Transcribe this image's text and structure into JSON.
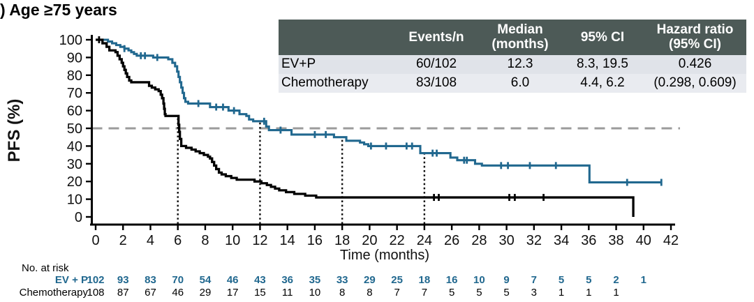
{
  "title": ") Age ≥75 years",
  "summary_table": {
    "headers": [
      "",
      "Events/n",
      "Median\n(months)",
      "95% CI",
      "Hazard ratio\n(95% CI)"
    ],
    "rows": [
      {
        "label": "EV+P",
        "events_n": "60/102",
        "median_months": "12.3",
        "ci_95": "8.3, 19.5",
        "hazard_ratio": "0.426"
      },
      {
        "label": "Chemotherapy",
        "events_n": "83/108",
        "median_months": "6.0",
        "ci_95": "4.4, 6.2",
        "hazard_ratio": "(0.298, 0.609)"
      }
    ],
    "header_bg": "#4d5a57",
    "row_bgs": [
      "#e0e3e9",
      "#e9ebf0"
    ]
  },
  "chart_data": {
    "type": "line",
    "subtype": "kaplan-meier-step",
    "xlabel": "Time (months)",
    "ylabel": "PFS (%)",
    "xlim": [
      0,
      42
    ],
    "ylim": [
      0,
      100
    ],
    "xticks": [
      0,
      2,
      4,
      6,
      8,
      10,
      12,
      14,
      16,
      18,
      20,
      22,
      24,
      26,
      28,
      30,
      32,
      34,
      36,
      38,
      40,
      42
    ],
    "yticks": [
      0,
      10,
      20,
      30,
      40,
      50,
      60,
      70,
      80,
      90,
      100
    ],
    "grid": false,
    "legend": "none (series identified in summary and risk tables)",
    "reference_lines": {
      "horizontal_dashed": {
        "y": 50,
        "color": "#9b9b9b"
      },
      "vertical_dotted": [
        {
          "x": 6,
          "y_top": 57
        },
        {
          "x": 12,
          "y_top": 54
        },
        {
          "x": 18,
          "y_top": 45
        },
        {
          "x": 24,
          "y_top": 36
        }
      ]
    },
    "series": [
      {
        "name": "EV+P",
        "color": "#21688f",
        "median_months": 12.3,
        "steps": [
          [
            0,
            100
          ],
          [
            0.9,
            99
          ],
          [
            1.2,
            98
          ],
          [
            1.5,
            97
          ],
          [
            1.8,
            96
          ],
          [
            2.1,
            95
          ],
          [
            2.4,
            94
          ],
          [
            2.6,
            93
          ],
          [
            2.8,
            92
          ],
          [
            3.0,
            91
          ],
          [
            4.2,
            90
          ],
          [
            5.3,
            89
          ],
          [
            5.6,
            87
          ],
          [
            5.8,
            85
          ],
          [
            5.95,
            82
          ],
          [
            6.05,
            79
          ],
          [
            6.15,
            76
          ],
          [
            6.25,
            73
          ],
          [
            6.35,
            70
          ],
          [
            6.45,
            67
          ],
          [
            6.55,
            65
          ],
          [
            6.75,
            64
          ],
          [
            8.35,
            62
          ],
          [
            9.7,
            60
          ],
          [
            10.5,
            58
          ],
          [
            11.0,
            57
          ],
          [
            11.2,
            55
          ],
          [
            11.5,
            54
          ],
          [
            12.45,
            51
          ],
          [
            12.65,
            49
          ],
          [
            14.3,
            46.5
          ],
          [
            17.4,
            45
          ],
          [
            18.3,
            43
          ],
          [
            19.3,
            42
          ],
          [
            19.6,
            41
          ],
          [
            19.9,
            40
          ],
          [
            23.7,
            36
          ],
          [
            25.9,
            33.5
          ],
          [
            26.4,
            32
          ],
          [
            27.7,
            30
          ],
          [
            28.2,
            29
          ],
          [
            36.05,
            19.5
          ],
          [
            41.35,
            19.5
          ]
        ],
        "censor_marks": [
          [
            2.1,
            95
          ],
          [
            3.3,
            91
          ],
          [
            3.6,
            91
          ],
          [
            4.5,
            90
          ],
          [
            7.5,
            64
          ],
          [
            8.8,
            62
          ],
          [
            9.3,
            62
          ],
          [
            10.1,
            60
          ],
          [
            12.3,
            54
          ],
          [
            13.5,
            49
          ],
          [
            16.0,
            46.5
          ],
          [
            16.8,
            46.5
          ],
          [
            20.1,
            40
          ],
          [
            21.2,
            40
          ],
          [
            22.7,
            40
          ],
          [
            23.1,
            40
          ],
          [
            24.6,
            36
          ],
          [
            24.9,
            36
          ],
          [
            26.9,
            32
          ],
          [
            27.1,
            32
          ],
          [
            29.6,
            29
          ],
          [
            30.1,
            29
          ],
          [
            31.7,
            29
          ],
          [
            33.6,
            29
          ],
          [
            38.8,
            19.5
          ],
          [
            41.3,
            19.5
          ]
        ]
      },
      {
        "name": "Chemotherapy",
        "color": "#000000",
        "median_months": 6.0,
        "steps": [
          [
            0,
            100
          ],
          [
            0.5,
            98
          ],
          [
            0.8,
            96
          ],
          [
            1.0,
            94
          ],
          [
            1.45,
            93
          ],
          [
            1.6,
            91
          ],
          [
            1.75,
            89
          ],
          [
            1.9,
            87
          ],
          [
            2.0,
            85
          ],
          [
            2.1,
            83
          ],
          [
            2.2,
            81
          ],
          [
            2.3,
            79
          ],
          [
            2.45,
            77
          ],
          [
            2.6,
            76
          ],
          [
            3.9,
            74
          ],
          [
            4.1,
            73
          ],
          [
            4.35,
            72
          ],
          [
            4.6,
            71
          ],
          [
            4.75,
            69
          ],
          [
            4.85,
            67
          ],
          [
            4.95,
            64
          ],
          [
            5.0,
            61
          ],
          [
            5.05,
            58
          ],
          [
            5.1,
            57
          ],
          [
            6.05,
            52
          ],
          [
            6.1,
            48
          ],
          [
            6.15,
            44
          ],
          [
            6.25,
            40
          ],
          [
            6.6,
            39
          ],
          [
            7.0,
            38
          ],
          [
            7.3,
            37
          ],
          [
            7.6,
            36
          ],
          [
            7.9,
            35
          ],
          [
            8.2,
            34
          ],
          [
            8.35,
            33
          ],
          [
            8.5,
            31
          ],
          [
            8.65,
            29
          ],
          [
            8.8,
            27
          ],
          [
            9.0,
            25
          ],
          [
            9.2,
            24
          ],
          [
            9.5,
            23
          ],
          [
            9.9,
            22
          ],
          [
            10.3,
            21
          ],
          [
            11.6,
            20
          ],
          [
            12.1,
            19
          ],
          [
            12.5,
            18
          ],
          [
            12.8,
            17
          ],
          [
            13.1,
            16
          ],
          [
            13.4,
            15
          ],
          [
            13.9,
            14
          ],
          [
            14.5,
            13
          ],
          [
            15.3,
            12
          ],
          [
            16.1,
            11
          ],
          [
            39.25,
            0
          ]
        ],
        "censor_marks": [
          [
            0.25,
            100
          ],
          [
            24.7,
            11
          ],
          [
            25.05,
            11
          ],
          [
            30.2,
            11
          ],
          [
            30.6,
            11
          ],
          [
            32.7,
            11
          ]
        ]
      }
    ]
  },
  "risk_table": {
    "heading": "No. at risk",
    "months": [
      0,
      2,
      4,
      6,
      8,
      10,
      12,
      14,
      16,
      18,
      20,
      22,
      24,
      26,
      28,
      30,
      32,
      34,
      36,
      38,
      40
    ],
    "rows": [
      {
        "label": "EV + P",
        "color": "#21688f",
        "bold": true,
        "values": [
          "102",
          "93",
          "83",
          "70",
          "54",
          "46",
          "43",
          "36",
          "35",
          "33",
          "29",
          "25",
          "18",
          "16",
          "10",
          "9",
          "7",
          "5",
          "5",
          "2",
          "1"
        ]
      },
      {
        "label": "Chemotherapy",
        "color": "#000000",
        "bold": false,
        "values": [
          "108",
          "87",
          "67",
          "46",
          "29",
          "17",
          "15",
          "11",
          "10",
          "8",
          "8",
          "7",
          "7",
          "5",
          "5",
          "5",
          "3",
          "1",
          "1",
          "1"
        ]
      }
    ]
  }
}
